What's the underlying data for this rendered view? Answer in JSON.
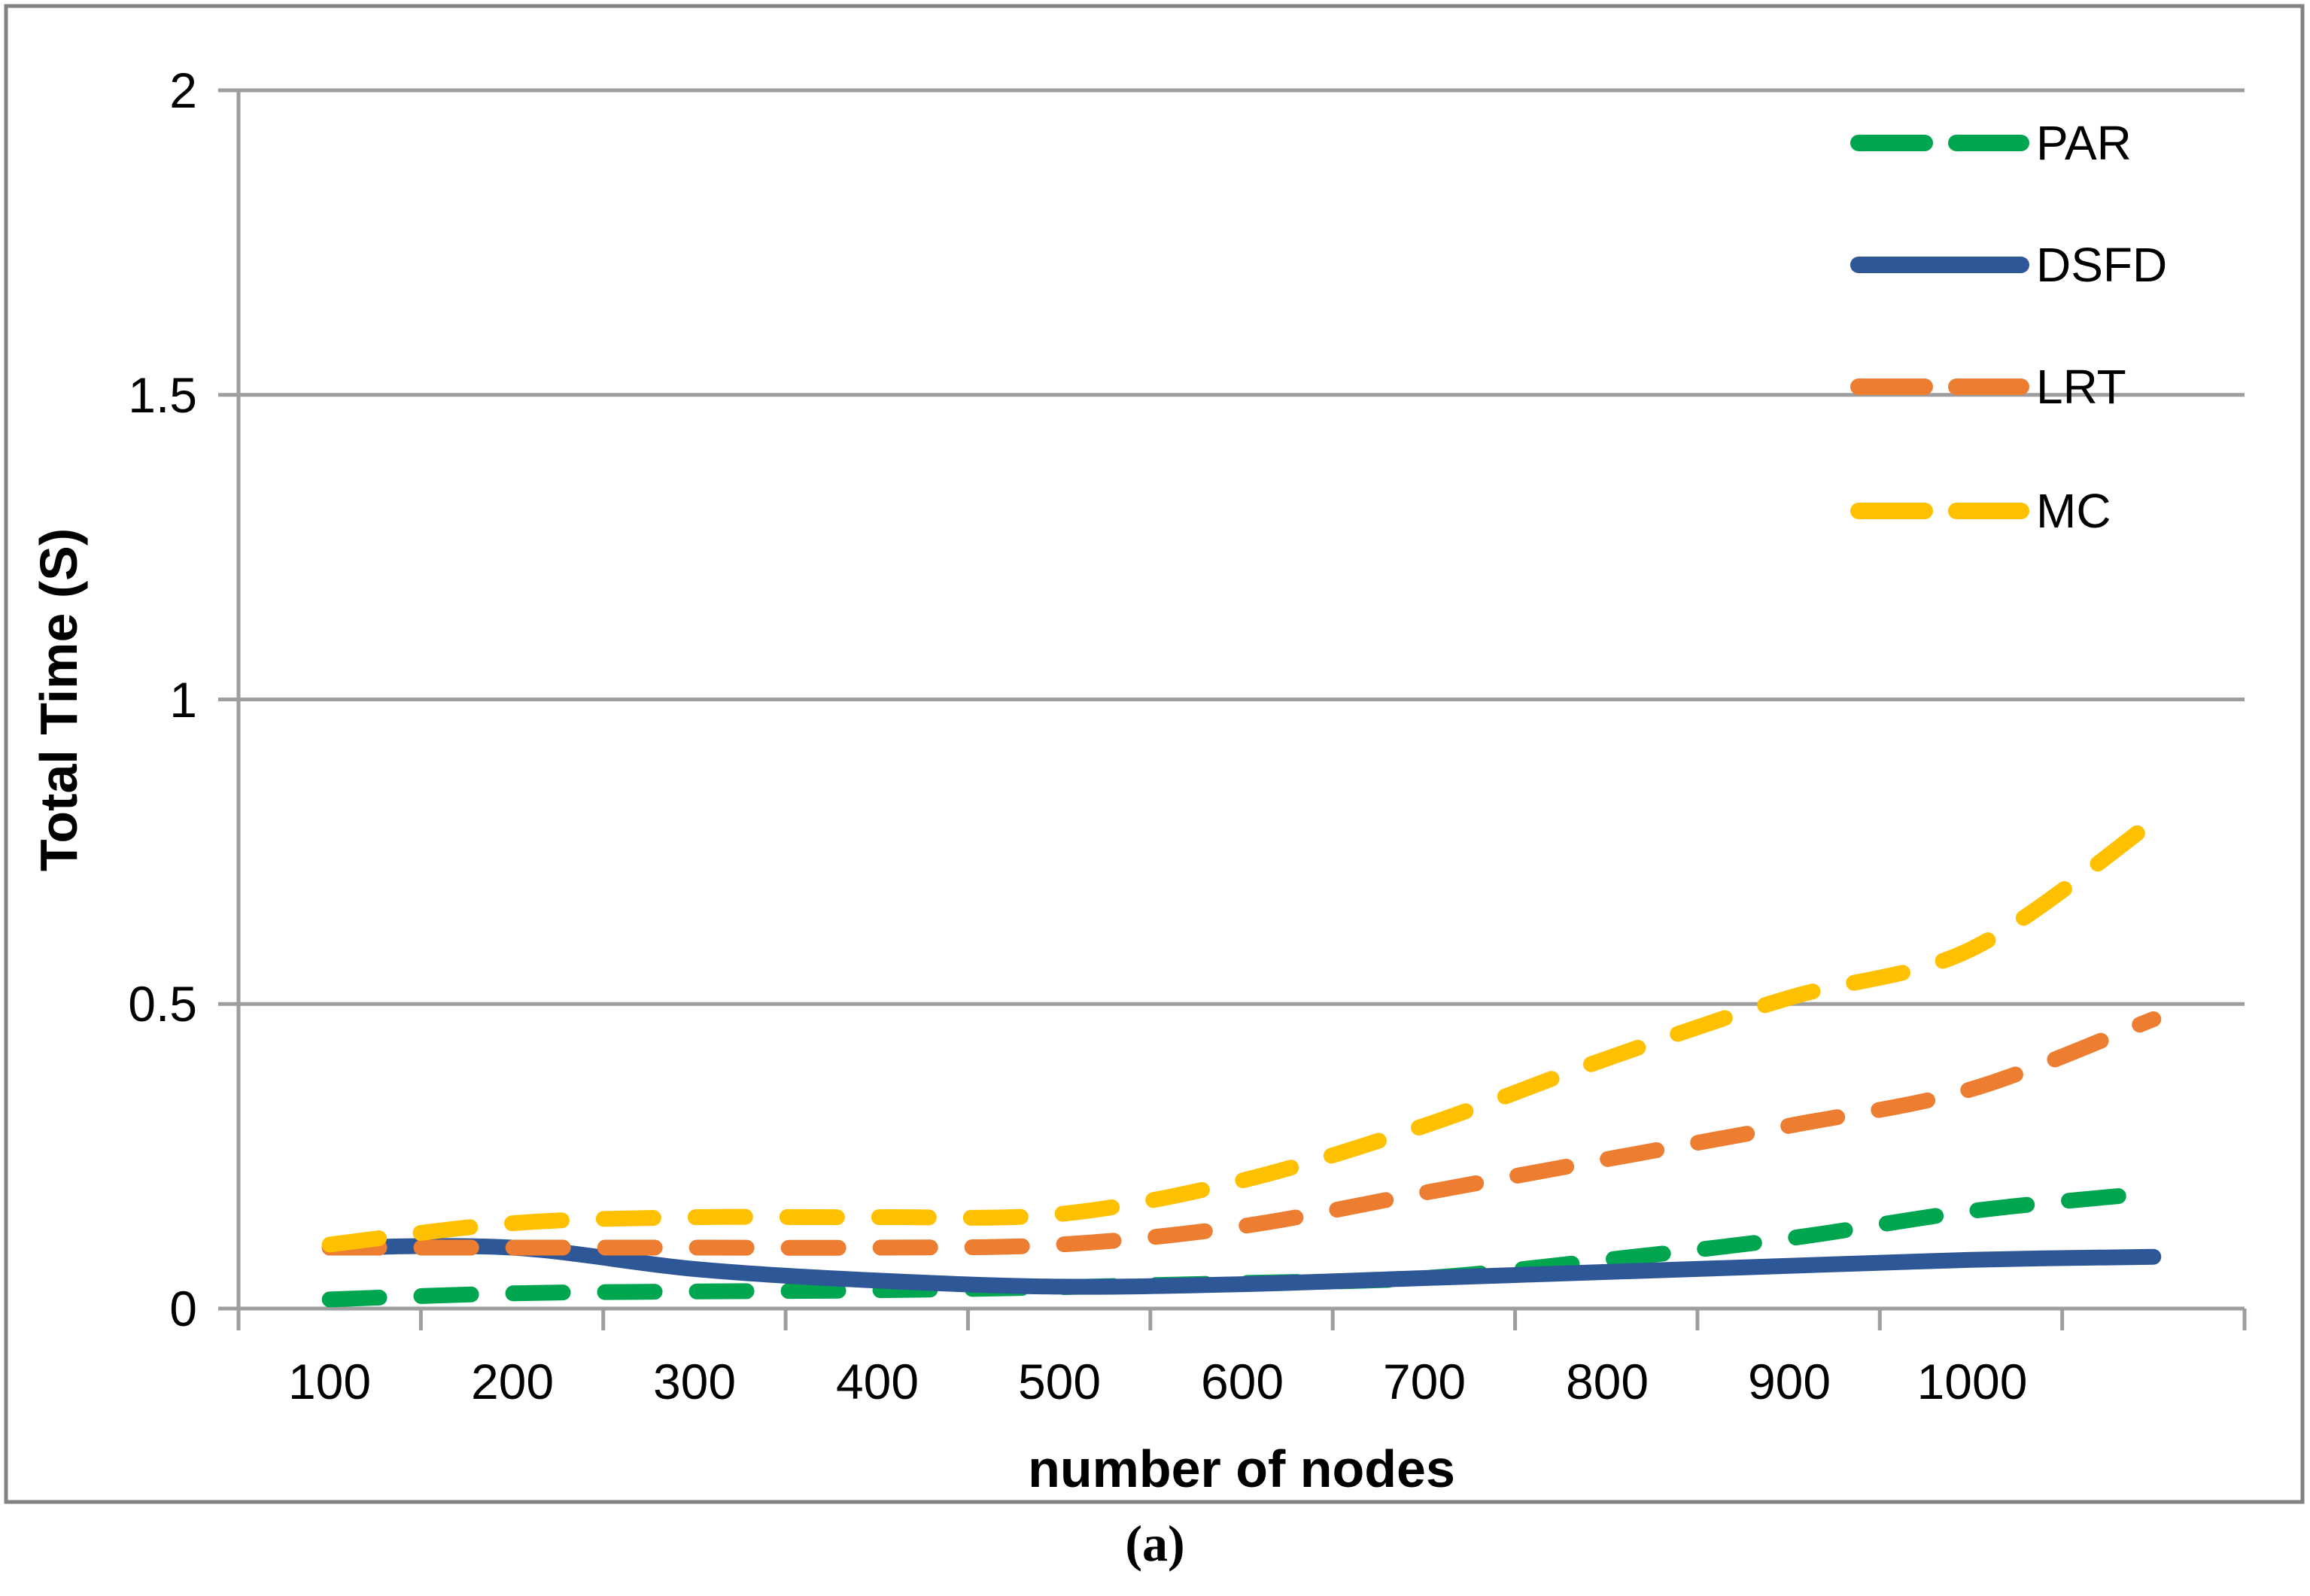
{
  "figure": {
    "caption": "(a)"
  },
  "colors": {
    "gridline": "#9E9E9E",
    "axis": "#9E9E9E",
    "border": "#828282",
    "text": "#000000",
    "background": "#FFFFFF"
  },
  "chart_data": {
    "type": "line",
    "title": "",
    "xlabel": "number of nodes",
    "ylabel": "Total Time (S)",
    "x": [
      100,
      200,
      300,
      400,
      500,
      600,
      700,
      800,
      900,
      1000,
      1100
    ],
    "x_tick_labels": [
      "100",
      "200",
      "300",
      "400",
      "500",
      "600",
      "700",
      "800",
      "900",
      "1000",
      ""
    ],
    "y_ticks": [
      0,
      0.5,
      1,
      1.5,
      2
    ],
    "y_tick_labels": [
      "0",
      "0.5",
      "1",
      "1.5",
      "2"
    ],
    "ylim": [
      0,
      2
    ],
    "grid": "horizontal",
    "legend_position": "top-right",
    "smooth_lines": true,
    "series": [
      {
        "name": "PAR",
        "color": "#00A550",
        "style": "dashed",
        "values": [
          0.015,
          0.025,
          0.028,
          0.03,
          0.035,
          0.042,
          0.05,
          0.08,
          0.115,
          0.16,
          0.19
        ]
      },
      {
        "name": "DSFD",
        "color": "#2E5797",
        "style": "solid",
        "values": [
          0.1,
          0.1,
          0.065,
          0.046,
          0.036,
          0.04,
          0.05,
          0.06,
          0.07,
          0.08,
          0.085
        ]
      },
      {
        "name": "LRT",
        "color": "#EC7D31",
        "style": "dashed",
        "values": [
          0.1,
          0.1,
          0.1,
          0.1,
          0.105,
          0.135,
          0.19,
          0.245,
          0.3,
          0.36,
          0.475
        ]
      },
      {
        "name": "MC",
        "color": "#FFC000",
        "style": "dashed",
        "values": [
          0.105,
          0.14,
          0.15,
          0.15,
          0.155,
          0.21,
          0.3,
          0.41,
          0.51,
          0.59,
          0.8
        ]
      }
    ]
  }
}
